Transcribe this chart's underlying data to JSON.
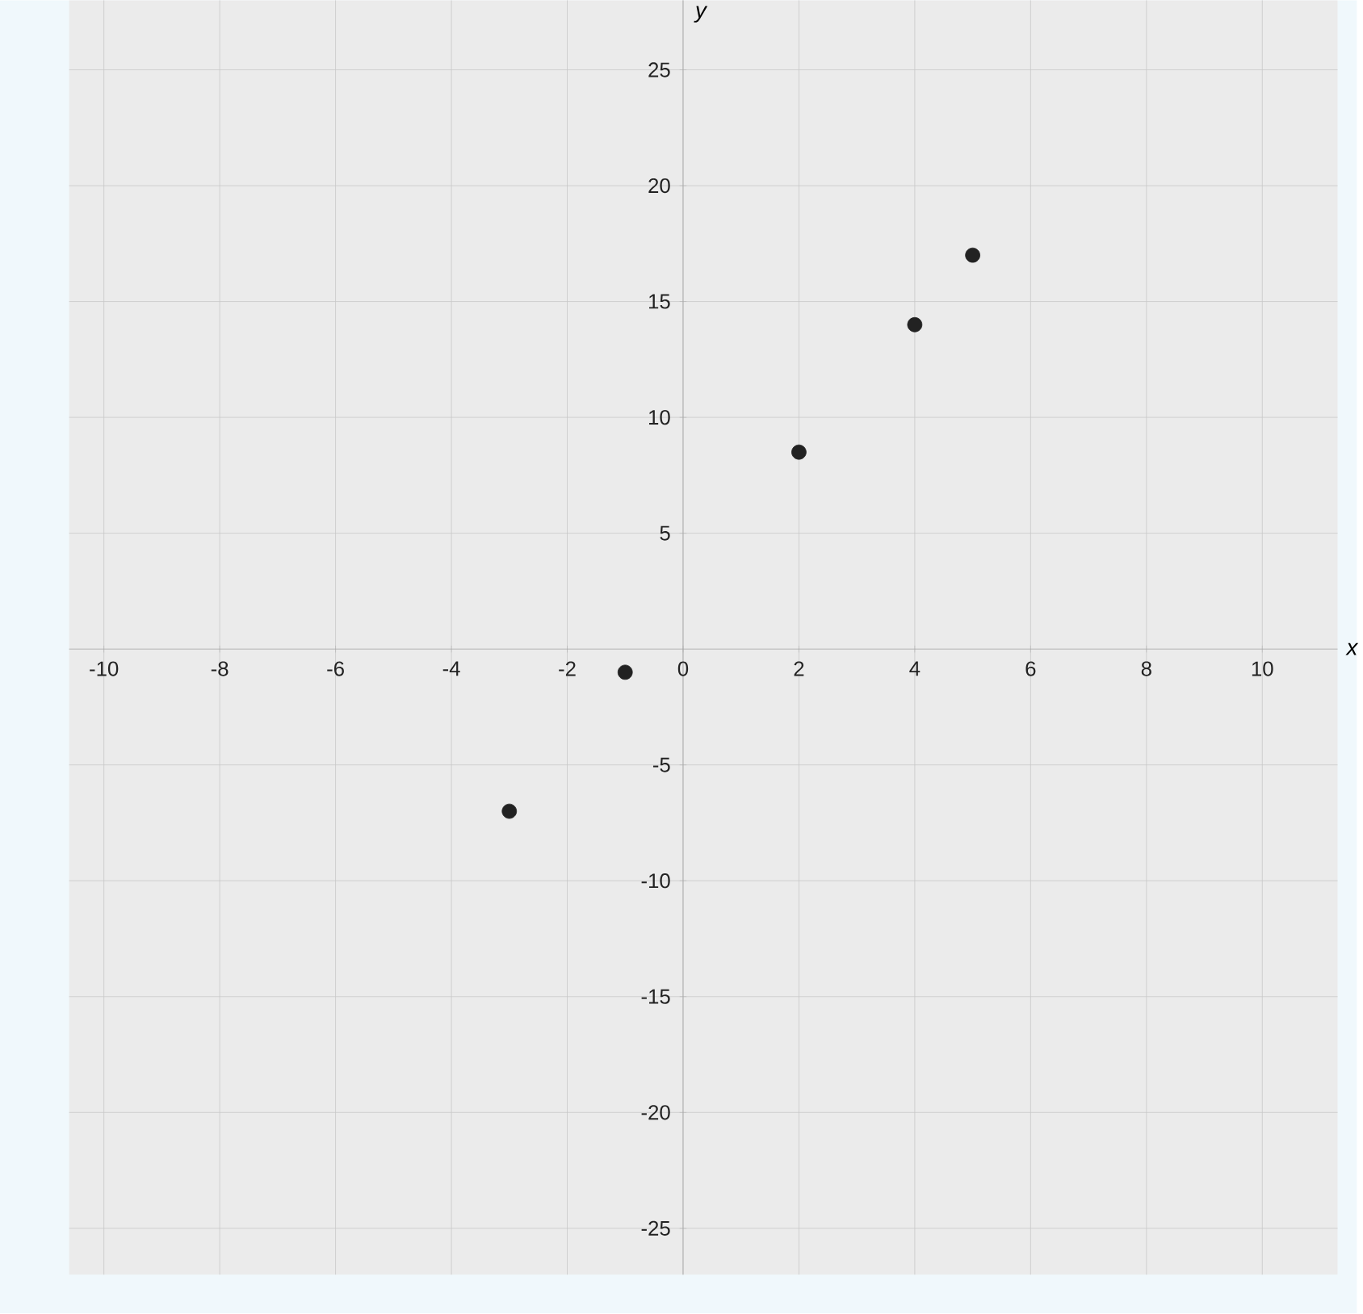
{
  "chart_data": {
    "type": "scatter",
    "xlabel": "x",
    "ylabel": "y",
    "x": [
      -3,
      -1,
      2,
      4,
      5
    ],
    "series": [
      {
        "color": "#222222",
        "values": [
          -7,
          -1,
          8.5,
          14,
          17
        ]
      }
    ],
    "xlim": [
      -10.6,
      11.3
    ],
    "ylim": [
      -27,
      28
    ],
    "xticks": [
      -10,
      -8,
      -6,
      -4,
      -2,
      0,
      2,
      4,
      6,
      8,
      10
    ],
    "yticks": [
      -25,
      -20,
      -15,
      -10,
      -5,
      5,
      10,
      15,
      20,
      25
    ],
    "grid": true,
    "marker": "circle"
  }
}
